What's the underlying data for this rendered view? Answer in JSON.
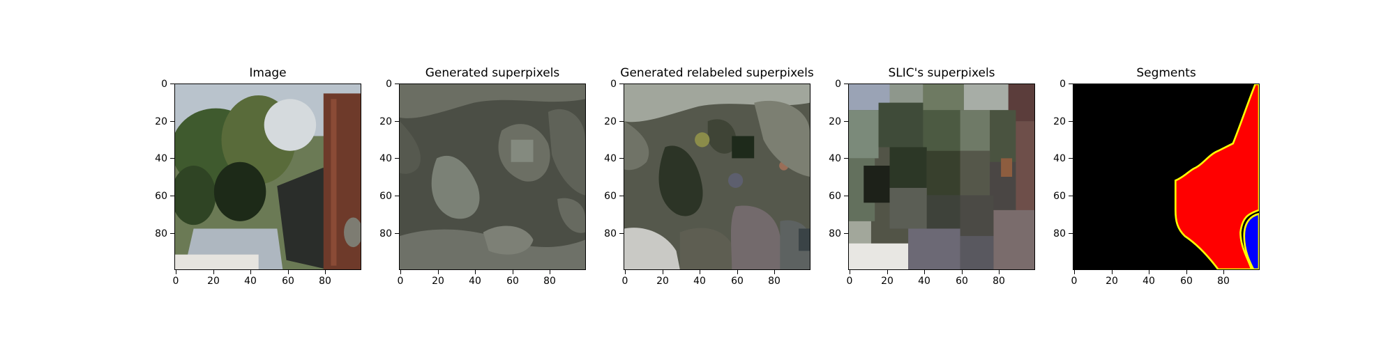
{
  "panels": [
    {
      "title": "Image"
    },
    {
      "title": "Generated superpixels"
    },
    {
      "title": "Generated relabeled superpixels"
    },
    {
      "title": "SLIC's superpixels"
    },
    {
      "title": "Segments"
    }
  ],
  "axis": {
    "y_ticks": [
      "0",
      "20",
      "40",
      "60",
      "80"
    ],
    "x_ticks": [
      "0",
      "20",
      "40",
      "60",
      "80"
    ],
    "range": [
      0,
      100
    ]
  },
  "colors": {
    "segment_background": "#000000",
    "segment_region_a": "#ff0000",
    "segment_region_b": "#0000ff",
    "segment_boundary": "#ffff00"
  }
}
